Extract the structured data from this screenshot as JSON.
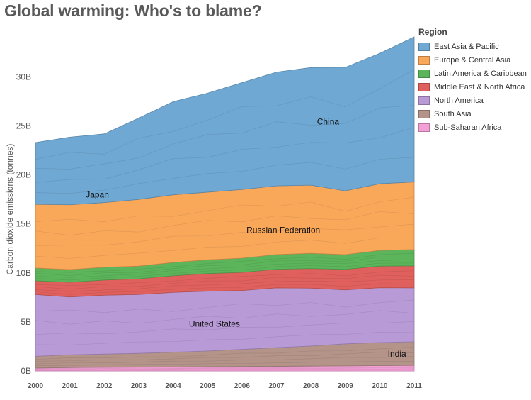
{
  "title": "Global warming: Who's to blame?",
  "colors": {
    "East Asia & Pacific": "#6fa8d2",
    "Europe & Central Asia": "#f9a85a",
    "Latin America & Caribbean": "#5cb55a",
    "Middle East & North Africa": "#e0605d",
    "North America": "#b89ad6",
    "South Asia": "#b49389",
    "Sub-Saharan Africa": "#f3a0d6"
  },
  "legend": {
    "title": "Region",
    "items": [
      "East Asia & Pacific",
      "Europe & Central Asia",
      "Latin America & Caribbean",
      "Middle East & North Africa",
      "North America",
      "South Asia",
      "Sub-Saharan Africa"
    ]
  },
  "chart_data": {
    "type": "area",
    "title": "Global warming: Who's to blame?",
    "xlabel": "",
    "ylabel": "Carbon dioxide emissions (tonnes)",
    "x": [
      2000,
      2001,
      2002,
      2003,
      2004,
      2005,
      2006,
      2007,
      2008,
      2009,
      2010,
      2011
    ],
    "y_tick_values": [
      0,
      5000000000,
      10000000000,
      15000000000,
      20000000000,
      25000000000,
      30000000000
    ],
    "y_tick_labels": [
      "0B",
      "5B",
      "10B",
      "15B",
      "20B",
      "25B",
      "30B"
    ],
    "ylim": [
      -500000000,
      33500000000
    ],
    "grid": false,
    "stacked": true,
    "series": [
      {
        "name": "Sub-Saharan Africa",
        "values": [
          0.3,
          0.35,
          0.38,
          0.4,
          0.42,
          0.44,
          0.46,
          0.48,
          0.5,
          0.52,
          0.55,
          0.58
        ],
        "unit": "B"
      },
      {
        "name": "South Asia",
        "values": [
          1.2,
          1.3,
          1.35,
          1.4,
          1.5,
          1.6,
          1.75,
          1.9,
          2.05,
          2.25,
          2.35,
          2.4
        ],
        "unit": "B"
      },
      {
        "name": "North America",
        "values": [
          6.3,
          5.9,
          6.0,
          6.0,
          6.1,
          6.1,
          6.0,
          6.1,
          5.9,
          5.5,
          5.6,
          5.5
        ],
        "unit": "B"
      },
      {
        "name": "Middle East & North Africa",
        "values": [
          1.4,
          1.5,
          1.55,
          1.6,
          1.7,
          1.8,
          1.85,
          1.9,
          2.0,
          2.1,
          2.2,
          2.25
        ],
        "unit": "B"
      },
      {
        "name": "Latin America & Caribbean",
        "values": [
          1.3,
          1.3,
          1.3,
          1.3,
          1.35,
          1.4,
          1.45,
          1.5,
          1.55,
          1.5,
          1.6,
          1.65
        ],
        "unit": "B"
      },
      {
        "name": "Europe & Central Asia",
        "values": [
          6.5,
          6.6,
          6.6,
          6.8,
          6.9,
          6.9,
          7.0,
          7.0,
          6.95,
          6.5,
          6.8,
          6.9
        ],
        "unit": "B"
      },
      {
        "name": "East Asia & Pacific",
        "values": [
          6.3,
          6.9,
          7.0,
          8.3,
          9.5,
          10.1,
          10.9,
          11.6,
          12.0,
          12.6,
          13.3,
          14.8
        ],
        "unit": "B"
      }
    ],
    "annotations": [
      "China",
      "Japan",
      "Russian Federation",
      "United States",
      "India"
    ]
  }
}
